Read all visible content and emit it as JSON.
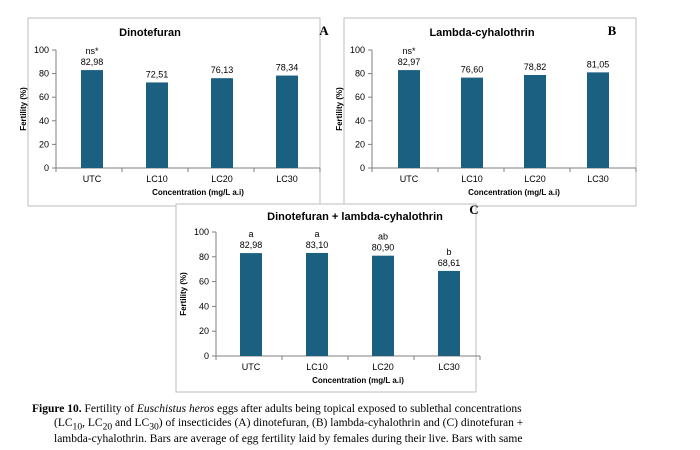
{
  "colors": {
    "bar": "#1b6080",
    "axis": "#7f7f7f",
    "border": "#bdbdbd"
  },
  "chart_data": [
    {
      "panel": "A",
      "type": "bar",
      "title": "Dinotefuran",
      "categories": [
        "UTC",
        "LC10",
        "LC20",
        "LC30"
      ],
      "values": [
        82.98,
        72.51,
        76.13,
        78.34
      ],
      "value_labels": [
        "82,98",
        "72,51",
        "76,13",
        "78,34"
      ],
      "annotations": [
        "ns*",
        "",
        "",
        ""
      ],
      "xlabel": "Concentration (mg/L a.i)",
      "ylabel": "Fertility (%)",
      "ylim": [
        0,
        100
      ],
      "yticks": [
        0,
        20,
        40,
        60,
        80,
        100
      ],
      "grid": false
    },
    {
      "panel": "B",
      "type": "bar",
      "title": "Lambda-cyhalothrin",
      "categories": [
        "UTC",
        "LC10",
        "LC20",
        "LC30"
      ],
      "values": [
        82.97,
        76.6,
        78.82,
        81.05
      ],
      "value_labels": [
        "82,97",
        "76,60",
        "78,82",
        "81,05"
      ],
      "annotations": [
        "ns*",
        "",
        "",
        ""
      ],
      "xlabel": "Concentration (mg/L a.i)",
      "ylabel": "Fertility (%)",
      "ylim": [
        0,
        100
      ],
      "yticks": [
        0,
        20,
        40,
        60,
        80,
        100
      ],
      "grid": false
    },
    {
      "panel": "C",
      "type": "bar",
      "title": "Dinotefuran + lambda-cyhalothrin",
      "categories": [
        "UTC",
        "LC10",
        "LC20",
        "LC30"
      ],
      "values": [
        82.98,
        83.1,
        80.9,
        68.61
      ],
      "value_labels": [
        "82,98",
        "83,10",
        "80,90",
        "68,61"
      ],
      "annotations": [
        "a",
        "a",
        "ab",
        "b"
      ],
      "xlabel": "Concentration (mg/L a.i)",
      "ylabel": "Fertility (%)",
      "ylim": [
        0,
        100
      ],
      "yticks": [
        0,
        20,
        40,
        60,
        80,
        100
      ],
      "grid": false
    }
  ],
  "caption": {
    "label": "Figure 10.",
    "text_before_italic": " Fertility of ",
    "italic": "Euschistus heros",
    "text_after_italic": " eggs after adults being topical exposed to sublethal concentrations",
    "line2_part1": "(LC",
    "line2_sub1": "10",
    "line2_part2": ", LC",
    "line2_sub2": "20",
    "line2_part3": " and LC",
    "line2_sub3": "30",
    "line2_part4": ") of insecticides (A) dinotefuran, (B) lambda-cyhalothrin and (C) dinotefuran +",
    "line3": "lambda-cyhalothrin. Bars are average of egg fertility laid by females during their live. Bars with same"
  }
}
